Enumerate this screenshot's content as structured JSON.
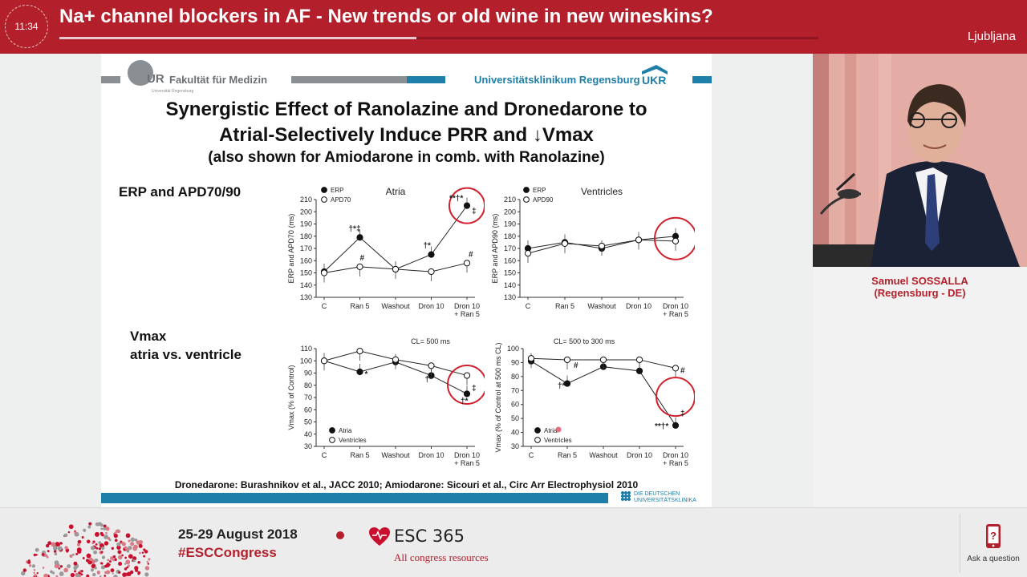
{
  "header": {
    "timer": "11:34",
    "title": "Na+ channel blockers in AF - New trends or old wine in new wineskins?",
    "city": "Ljubljana",
    "progress": 0.47
  },
  "slide": {
    "logo_left": "Fakultät für Medizin",
    "logo_left_mark": "UR",
    "logo_left_sub": "Universität Regensburg",
    "logo_right": "Universitätsklinikum Regensburg",
    "logo_right_mark": "UKR",
    "title_line1": "Synergistic Effect of Ranolazine and Dronedarone to",
    "title_line2": "Atrial-Selectively Induce PRR and ↓Vmax",
    "title_line3": "(also shown for Amiodarone in comb. with Ranolazine)",
    "section_erp": "ERP and APD70/90",
    "section_vmax_line1": "Vmax",
    "section_vmax_line2": "atria vs. ventricle",
    "citation": "Dronedarone: Burashnikov et al., JACC 2010; Amiodarone: Sicouri et al., Circ Arr Electrophysiol 2010",
    "footer_logo_line1": "DIE DEUTSCHEN",
    "footer_logo_line2": "UNIVERSITÄTSKLINIKA",
    "accent_blue": "#1e7fa8",
    "accent_grey": "#8a8f93"
  },
  "chart_data": [
    {
      "type": "line",
      "title": "Atria",
      "ylabel": "ERP and APD70 (ms)",
      "categories": [
        "C",
        "Ran 5",
        "Washout",
        "Dron 10",
        "Dron 10 + Ran 5"
      ],
      "ylim": [
        130,
        210
      ],
      "yticks": [
        130,
        140,
        150,
        160,
        170,
        180,
        190,
        200,
        210
      ],
      "series": [
        {
          "name": "ERP",
          "values": [
            151,
            179,
            153,
            165,
            205
          ],
          "marker": "filled"
        },
        {
          "name": "APD70",
          "values": [
            150,
            155,
            153,
            151,
            158
          ],
          "marker": "open"
        }
      ],
      "annotations": [
        "†*‡",
        "#",
        "†*",
        "**†*",
        "‡",
        "#"
      ]
    },
    {
      "type": "line",
      "title": "Ventricles",
      "ylabel": "ERP and APD90 (ms)",
      "categories": [
        "C",
        "Ran 5",
        "Washout",
        "Dron 10",
        "Dron 10 + Ran 5"
      ],
      "ylim": [
        130,
        210
      ],
      "yticks": [
        130,
        140,
        150,
        160,
        170,
        180,
        190,
        200,
        210
      ],
      "series": [
        {
          "name": "ERP",
          "values": [
            170,
            175,
            170,
            177,
            180
          ],
          "marker": "filled"
        },
        {
          "name": "APD90",
          "values": [
            166,
            174,
            172,
            177,
            176
          ],
          "marker": "open"
        }
      ]
    },
    {
      "type": "line",
      "title": "CL= 500 ms",
      "ylabel": "Vmax (% of Control)",
      "categories": [
        "C",
        "Ran 5",
        "Washout",
        "Dron 10",
        "Dron 10 + Ran 5"
      ],
      "ylim": [
        30,
        110
      ],
      "yticks": [
        30,
        40,
        50,
        60,
        70,
        80,
        90,
        100,
        110
      ],
      "series": [
        {
          "name": "Atria",
          "values": [
            100,
            91,
            99,
            88,
            73
          ],
          "marker": "filled"
        },
        {
          "name": "Ventricles",
          "values": [
            100,
            108,
            101,
            96,
            88
          ],
          "marker": "open"
        }
      ],
      "annotations": [
        "*",
        "†*",
        "‡",
        "†*"
      ]
    },
    {
      "type": "line",
      "title": "CL= 500 to 300 ms",
      "ylabel": "Vmax (% of Control at 500 ms CL)",
      "categories": [
        "C",
        "Ran 5",
        "Washout",
        "Dron 10",
        "Dron 10 + Ran 5"
      ],
      "ylim": [
        30,
        100
      ],
      "yticks": [
        30,
        40,
        50,
        60,
        70,
        80,
        90,
        100
      ],
      "series": [
        {
          "name": "Atria",
          "values": [
            91,
            75,
            87,
            84,
            45
          ],
          "marker": "filled"
        },
        {
          "name": "Ventricles",
          "values": [
            93,
            92,
            92,
            92,
            86
          ],
          "marker": "open"
        }
      ],
      "annotations": [
        "#",
        "†*",
        "#",
        "**†*",
        "‡"
      ]
    }
  ],
  "speaker": {
    "name": "Samuel SOSSALLA",
    "affiliation": "(Regensburg - DE)"
  },
  "footer": {
    "dates": "25-29 August 2018",
    "hashtag": "#ESCCongress",
    "esc_label": "ESC 365",
    "esc_sub": "All congress resources",
    "ask_label": "Ask a question",
    "brand_red": "#b31f2b"
  }
}
